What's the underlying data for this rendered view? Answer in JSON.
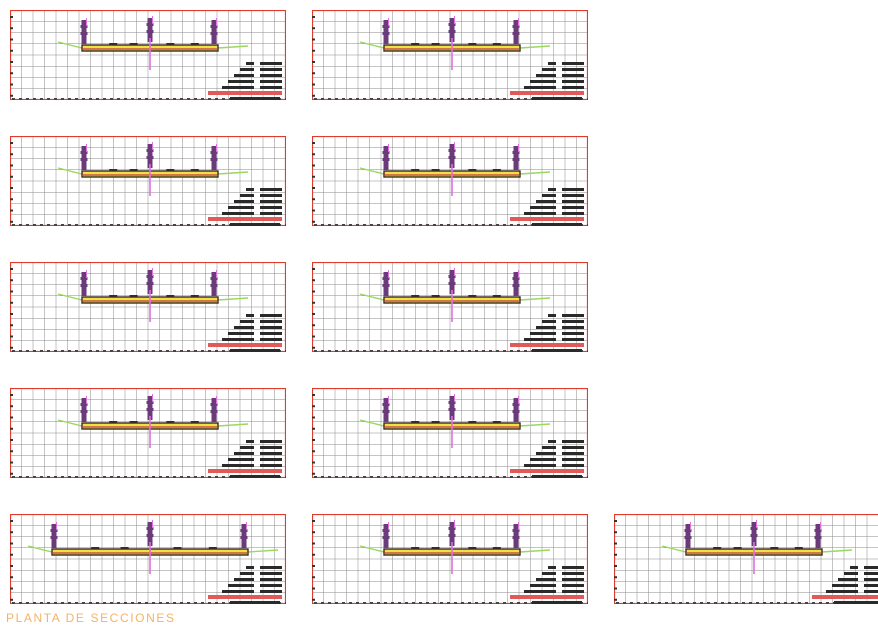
{
  "sheet": {
    "footer_label": "PLANTA DE SECCIONES",
    "colors": {
      "frame": "#e23a2a",
      "grid": "#8a8a8a",
      "ground_line": "#9ad860",
      "platform": "#3a2a2a",
      "platform_fill": "#f0e040",
      "centerline": "#e070e0",
      "pier": "#6a3a7a",
      "table_text": "#2a2a2a",
      "station_label": "#e05a5a",
      "footer_text": "#f5b266"
    }
  },
  "sections": [
    {
      "id": 1,
      "wide": false
    },
    {
      "id": 2,
      "wide": false
    },
    {
      "id": 3,
      "wide": false
    },
    {
      "id": 4,
      "wide": false
    },
    {
      "id": 5,
      "wide": false
    },
    {
      "id": 6,
      "wide": false
    },
    {
      "id": 7,
      "wide": false
    },
    {
      "id": 8,
      "wide": false
    },
    {
      "id": 9,
      "wide": true
    },
    {
      "id": 10,
      "wide": false
    },
    {
      "id": 11,
      "wide": false
    }
  ]
}
